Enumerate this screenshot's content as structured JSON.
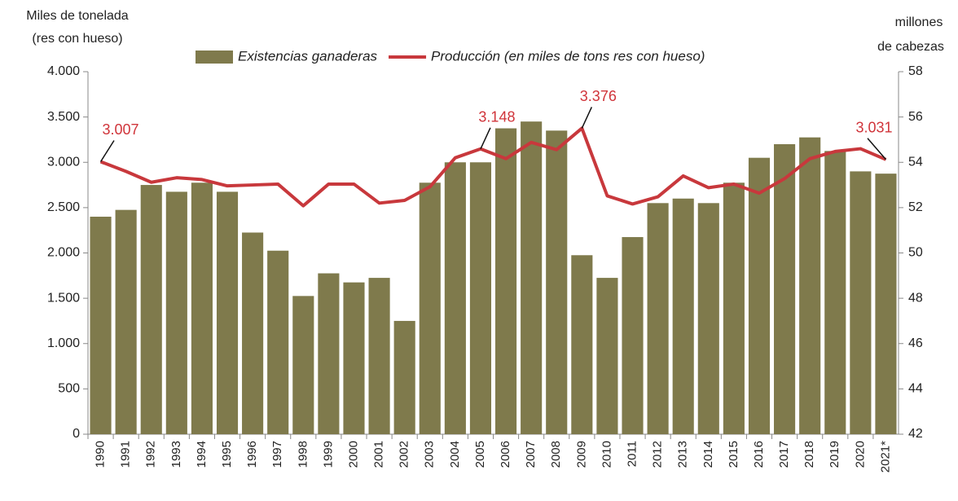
{
  "chart_data": {
    "type": "bar_line",
    "y_label": [
      "Miles de tonelada",
      "(res con hueso)"
    ],
    "y2_label": [
      "millones",
      "de cabezas"
    ],
    "categories": [
      "1990",
      "1991",
      "1992",
      "1993",
      "1994",
      "1995",
      "1996",
      "1997",
      "1998",
      "1999",
      "2000",
      "2001",
      "2002",
      "2003",
      "2004",
      "2005",
      "2006",
      "2007",
      "2008",
      "2009",
      "2010",
      "2011",
      "2012",
      "2013",
      "2014",
      "2015",
      "2016",
      "2017",
      "2018",
      "2019",
      "2020",
      "2021*"
    ],
    "series": [
      {
        "name": "Existencias ganaderas",
        "type": "bar",
        "axis": "y2",
        "color": "#7f7a4c",
        "values": [
          51.6,
          51.9,
          53.0,
          52.7,
          53.1,
          52.7,
          50.9,
          50.1,
          48.1,
          49.1,
          48.7,
          48.9,
          47.0,
          53.1,
          54.0,
          54.0,
          55.5,
          55.8,
          55.4,
          49.9,
          48.9,
          50.7,
          52.2,
          52.4,
          52.2,
          53.1,
          54.2,
          54.8,
          55.1,
          54.5,
          53.6,
          53.5
        ]
      },
      {
        "name": "Producción (en miles de tons res con hueso)",
        "type": "line",
        "axis": "y",
        "color": "#c8383c",
        "values": [
          3007,
          2900,
          2780,
          2830,
          2810,
          2740,
          2750,
          2760,
          2520,
          2760,
          2760,
          2550,
          2580,
          2730,
          3050,
          3148,
          3040,
          3220,
          3140,
          3376,
          2630,
          2540,
          2620,
          2850,
          2720,
          2760,
          2660,
          2820,
          3040,
          3120,
          3150,
          3031
        ],
        "value_labels": [
          "3.007",
          null,
          null,
          null,
          null,
          null,
          null,
          null,
          null,
          null,
          null,
          null,
          null,
          null,
          null,
          "3.148",
          null,
          null,
          null,
          "3.376",
          null,
          null,
          null,
          null,
          null,
          null,
          null,
          null,
          null,
          null,
          null,
          "3.031"
        ]
      }
    ],
    "ylim": [
      0,
      4000
    ],
    "yticks": [
      0,
      500,
      {
        "value": 1000,
        "label": "1.000"
      },
      {
        "value": 1500,
        "label": "1.500"
      },
      {
        "value": 2000,
        "label": "2.000"
      },
      {
        "value": 2500,
        "label": "2.500"
      },
      {
        "value": 3000,
        "label": "3.000"
      },
      {
        "value": 3500,
        "label": "3.500"
      },
      {
        "value": 4000,
        "label": "4.000"
      }
    ],
    "y2lim": [
      42,
      58
    ],
    "y2ticks": [
      42,
      44,
      46,
      48,
      50,
      52,
      54,
      56,
      58
    ],
    "legend": "top"
  }
}
